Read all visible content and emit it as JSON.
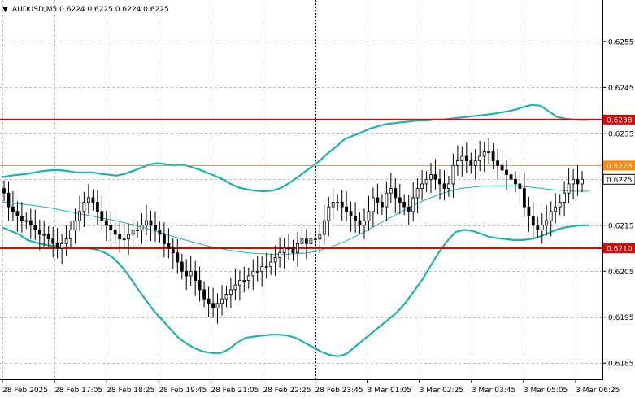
{
  "header": {
    "dropdown_glyph": "▼",
    "title": "AUDUSD,M5  0.6224 0.6225 0.6224 0.6225"
  },
  "colors": {
    "background": "#ffffff",
    "grid": "#c0c0c0",
    "candle": "#000000",
    "bollinger": "#20b2aa",
    "hline_red": "#e00000",
    "hline_orange": "#ff8c00",
    "current_price_bg": "#ffffff"
  },
  "chart_data": {
    "type": "candlestick",
    "symbol": "AUDUSD",
    "timeframe": "M5",
    "title": "AUDUSD,M5  0.6224 0.6225 0.6224 0.6225",
    "ylim": [
      0.61815,
      0.6264
    ],
    "grid": true,
    "y_ticks": [
      "0.6255",
      "0.6245",
      "0.6235",
      "0.6225",
      "0.6215",
      "0.6205",
      "0.6195",
      "0.6185"
    ],
    "y_tick_values": [
      0.6255,
      0.6245,
      0.6235,
      0.6225,
      0.6215,
      0.6205,
      0.6195,
      0.6185
    ],
    "x_ticks": [
      "28 Feb 2025",
      "28 Feb 17:05",
      "28 Feb 18:25",
      "28 Feb 19:45",
      "28 Feb 21:05",
      "28 Feb 22:25",
      "28 Feb 23:45",
      "3 Mar 01:05",
      "3 Mar 02:25",
      "3 Mar 03:45",
      "3 Mar 05:05",
      "3 Mar 06:25"
    ],
    "session_separator_label": "28 Feb 23:45",
    "horizontal_lines": [
      {
        "label": "0.6238",
        "value": 0.6238,
        "color": "#e00000"
      },
      {
        "label": "0.6228",
        "value": 0.6228,
        "color": "#ff8c00"
      },
      {
        "label": "0.6210",
        "value": 0.621,
        "color": "#e00000"
      }
    ],
    "current_price": {
      "label": "0.6225",
      "value": 0.6225
    },
    "close_series": [
      0.6222,
      0.6219,
      0.6218,
      0.6217,
      0.6216,
      0.6216,
      0.6215,
      0.6214,
      0.6213,
      0.6213,
      0.6212,
      0.6211,
      0.621,
      0.6211,
      0.6212,
      0.6214,
      0.6216,
      0.6218,
      0.622,
      0.6221,
      0.622,
      0.6218,
      0.6216,
      0.6215,
      0.6214,
      0.6213,
      0.6212,
      0.6212,
      0.6213,
      0.6214,
      0.6214,
      0.6215,
      0.6216,
      0.6215,
      0.6214,
      0.6213,
      0.6211,
      0.621,
      0.6209,
      0.6207,
      0.6205,
      0.6204,
      0.6205,
      0.6203,
      0.6201,
      0.6199,
      0.6198,
      0.6197,
      0.6198,
      0.6199,
      0.62,
      0.6201,
      0.6202,
      0.6203,
      0.6203,
      0.6204,
      0.6205,
      0.6205,
      0.6206,
      0.6206,
      0.6207,
      0.6208,
      0.6209,
      0.621,
      0.621,
      0.6209,
      0.6211,
      0.6212,
      0.6211,
      0.6212,
      0.6212,
      0.6213,
      0.6216,
      0.6219,
      0.622,
      0.622,
      0.6219,
      0.6218,
      0.6217,
      0.6216,
      0.6215,
      0.6216,
      0.6218,
      0.6221,
      0.622,
      0.6219,
      0.6222,
      0.6223,
      0.6221,
      0.622,
      0.6219,
      0.6218,
      0.6221,
      0.6223,
      0.6224,
      0.6225,
      0.6226,
      0.6225,
      0.6224,
      0.6223,
      0.6224,
      0.6228,
      0.6229,
      0.623,
      0.6229,
      0.6228,
      0.6229,
      0.623,
      0.6231,
      0.6231,
      0.6229,
      0.6228,
      0.6227,
      0.6226,
      0.6225,
      0.6224,
      0.6223,
      0.6219,
      0.6217,
      0.6215,
      0.6214,
      0.6215,
      0.6216,
      0.6218,
      0.6219,
      0.622,
      0.6222,
      0.6224,
      0.6225,
      0.6224,
      0.6225
    ],
    "bollinger_upper": [
      0.62255,
      0.62258,
      0.6226,
      0.62262,
      0.62265,
      0.62268,
      0.6227,
      0.6227,
      0.62268,
      0.62265,
      0.62265,
      0.62265,
      0.62262,
      0.6226,
      0.62258,
      0.62262,
      0.62268,
      0.62275,
      0.62282,
      0.62285,
      0.62283,
      0.6228,
      0.62282,
      0.62278,
      0.62272,
      0.62265,
      0.62258,
      0.6225,
      0.6224,
      0.62232,
      0.62228,
      0.62225,
      0.62224,
      0.62225,
      0.6223,
      0.6224,
      0.62252,
      0.62265,
      0.62278,
      0.62292,
      0.62308,
      0.62322,
      0.62338,
      0.62345,
      0.62352,
      0.6236,
      0.62365,
      0.6237,
      0.62372,
      0.62374,
      0.62376,
      0.62378,
      0.62378,
      0.6238,
      0.6238,
      0.62382,
      0.62384,
      0.62386,
      0.62388,
      0.6239,
      0.62392,
      0.62395,
      0.62398,
      0.62402,
      0.62408,
      0.62412,
      0.6241,
      0.62398,
      0.62386,
      0.62382,
      0.6238,
      0.62379,
      0.62379
    ],
    "bollinger_middle": [
      0.622,
      0.62198,
      0.62195,
      0.62192,
      0.62188,
      0.62183,
      0.62178,
      0.62173,
      0.62168,
      0.62163,
      0.62158,
      0.62152,
      0.62145,
      0.62138,
      0.6213,
      0.62122,
      0.62115,
      0.62108,
      0.62102,
      0.62097,
      0.62093,
      0.6209,
      0.62088,
      0.62087,
      0.62087,
      0.62088,
      0.6209,
      0.62095,
      0.62103,
      0.62113,
      0.62125,
      0.62138,
      0.62152,
      0.62166,
      0.6218,
      0.62193,
      0.62205,
      0.62215,
      0.62224,
      0.6223,
      0.62233,
      0.62235,
      0.62236,
      0.62236,
      0.62235,
      0.62233,
      0.6223,
      0.62227,
      0.62225,
      0.62224,
      0.62224
    ],
    "bollinger_lower": [
      0.62145,
      0.62138,
      0.6213,
      0.62118,
      0.62112,
      0.62108,
      0.62105,
      0.62102,
      0.621,
      0.621,
      0.621,
      0.62098,
      0.62092,
      0.62082,
      0.62065,
      0.62042,
      0.62015,
      0.6199,
      0.61965,
      0.61945,
      0.61925,
      0.61905,
      0.61892,
      0.61882,
      0.61875,
      0.61872,
      0.61872,
      0.6188,
      0.61895,
      0.61905,
      0.61908,
      0.6191,
      0.61912,
      0.61912,
      0.6191,
      0.61905,
      0.61895,
      0.61885,
      0.61875,
      0.61868,
      0.61865,
      0.6187,
      0.61885,
      0.619,
      0.61915,
      0.6193,
      0.61945,
      0.6196,
      0.6198,
      0.62005,
      0.6203,
      0.6206,
      0.6209,
      0.62115,
      0.62135,
      0.6214,
      0.62138,
      0.62132,
      0.62125,
      0.62122,
      0.6212,
      0.62118,
      0.62118,
      0.6212,
      0.62125,
      0.62132,
      0.6214,
      0.62145,
      0.62148,
      0.6215,
      0.6215
    ]
  }
}
